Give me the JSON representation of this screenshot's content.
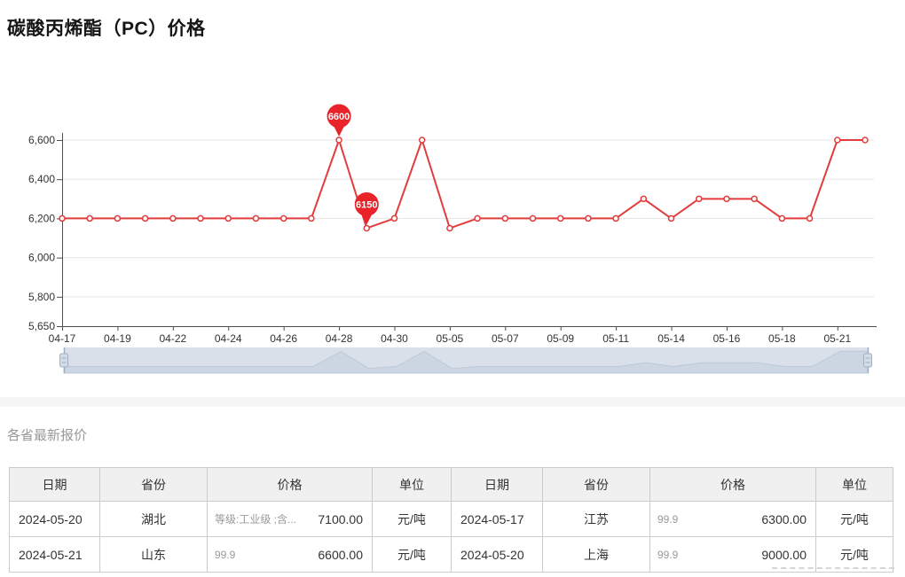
{
  "page": {
    "title": "碳酸丙烯酯（PC）价格",
    "section_title": "各省最新报价",
    "background": "#ffffff",
    "band_color": "#f5f5f5"
  },
  "chart_data": {
    "type": "line",
    "title": "碳酸丙烯酯（PC）价格",
    "xlabel": "",
    "ylabel": "",
    "x": [
      "04-17",
      "04-18",
      "04-19",
      "04-20",
      "04-22",
      "04-23",
      "04-24",
      "04-25",
      "04-26",
      "04-27",
      "04-28",
      "04-29",
      "04-30",
      "05-04",
      "05-05",
      "05-06",
      "05-07",
      "05-08",
      "05-09",
      "05-10",
      "05-11",
      "05-13",
      "05-14",
      "05-15",
      "05-16",
      "05-17",
      "05-18",
      "05-20",
      "05-21",
      "05-22"
    ],
    "values": [
      6200,
      6200,
      6200,
      6200,
      6200,
      6200,
      6200,
      6200,
      6200,
      6200,
      6600,
      6150,
      6200,
      6600,
      6150,
      6200,
      6200,
      6200,
      6200,
      6200,
      6200,
      6300,
      6200,
      6300,
      6300,
      6300,
      6200,
      6200,
      6600,
      6600
    ],
    "x_tick_labels": [
      "04-17",
      "04-19",
      "04-22",
      "04-24",
      "04-26",
      "04-28",
      "04-30",
      "05-05",
      "05-07",
      "05-09",
      "05-11",
      "05-14",
      "05-16",
      "05-18",
      "05-21"
    ],
    "x_label_every": 2,
    "y_ticks": [
      5650,
      5800,
      6000,
      6200,
      6400,
      6600
    ],
    "y_tick_labels": [
      "5,650",
      "5,800",
      "6,000",
      "6,200",
      "6,400",
      "6,600"
    ],
    "ylim": [
      5650,
      6700
    ],
    "grid": true,
    "legend": false,
    "navigator": true,
    "annotations": [
      {
        "index": 10,
        "label": "6600",
        "type": "max-pin"
      },
      {
        "index": 11,
        "label": "6150",
        "type": "min-pin"
      }
    ],
    "line_color": "#e23c3c",
    "pin_color": "#e8232a",
    "grid_color": "#e5e5e5",
    "axis_color": "#4d4d4d",
    "label_color": "#333333",
    "navigator_track_color": "#e4e9f1",
    "navigator_shadow_fill": "#d5dde7",
    "navigator_shadow_stroke": "#c2cdda",
    "navigator_handle_fill": "#d3dce8",
    "navigator_handle_stroke": "#9fadc0"
  },
  "table": {
    "headers": [
      "日期",
      "省份",
      "价格",
      "单位"
    ],
    "rows": [
      {
        "left": {
          "date": "2024-05-20",
          "province": "湖北",
          "spec": "等级:工业级 ;含...",
          "price": "7100.00",
          "unit": "元/吨"
        },
        "right": {
          "date": "2024-05-17",
          "province": "江苏",
          "spec": "99.9",
          "price": "6300.00",
          "unit": "元/吨"
        }
      },
      {
        "left": {
          "date": "2024-05-21",
          "province": "山东",
          "spec": "99.9",
          "price": "6600.00",
          "unit": "元/吨"
        },
        "right": {
          "date": "2024-05-20",
          "province": "上海",
          "spec": "99.9",
          "price": "9000.00",
          "unit": "元/吨"
        }
      }
    ]
  }
}
